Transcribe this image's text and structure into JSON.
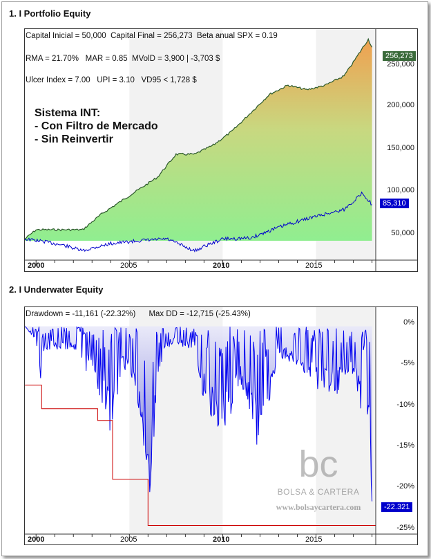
{
  "panel1": {
    "title": "1. I Portfolio Equity",
    "stats": [
      "Capital Inicial = 50,000  Capital Final = 256,273  Beta anual SPX = 0.19",
      "RMA = 21.70%   MAR = 0.85  MVolD = 3,900 | -3,703 $",
      "Ulcer Index = 7.00   UPI = 3.10   VD95 < 1,728 $"
    ],
    "overlay_lines": [
      "Sistema INT:",
      "- Con Filtro de Mercado",
      "- Sin Reinvertir"
    ],
    "y_ticks": [
      "250,000",
      "200,000",
      "150,000",
      "100,000",
      "50,000"
    ],
    "x_ticks": [
      "2000",
      "2005",
      "2010",
      "2015"
    ],
    "equity_badge": "256,273",
    "benchmark_badge": "85,310",
    "colors": {
      "equity_line": "#2d5a2d",
      "benchmark_line": "#0000cc",
      "fill_top": "#f0a050",
      "fill_bottom": "#90ee90"
    }
  },
  "panel2": {
    "title": "2. I Underwater Equity",
    "stats": "Drawdown = -11,161 (-22.32%)      Max DD = -12,715 (-25.43%)",
    "y_ticks": [
      "0%",
      "-5%",
      "-10%",
      "-15%",
      "-20%",
      "-25%"
    ],
    "x_ticks": [
      "2000",
      "2005",
      "2010",
      "2015"
    ],
    "current_badge": "-22.321",
    "watermark_logo": "bc",
    "watermark_name": "BOLSA & CARTERA",
    "watermark_url": "www.bolsaycartera.com",
    "colors": {
      "drawdown_line": "#0000ee",
      "max_dd_line": "#cc0000",
      "fill": "#c8c8f0"
    }
  },
  "chart_data": [
    {
      "type": "area",
      "title": "1. I Portfolio Equity",
      "series": [
        {
          "name": "Equity",
          "x": [
            1999.4,
            2000.0,
            2002.5,
            2003.5,
            2005.0,
            2006.5,
            2007.5,
            2008.5,
            2009.5,
            2010.5,
            2011.5,
            2012.5,
            2013.5,
            2014.5,
            2015.5,
            2016.5,
            2017.0,
            2017.8,
            2018.0
          ],
          "values": [
            48000,
            58000,
            58000,
            75000,
            95000,
            115000,
            140000,
            140000,
            150000,
            165000,
            185000,
            205000,
            215000,
            210000,
            215000,
            225000,
            240000,
            265000,
            256273
          ]
        },
        {
          "name": "Benchmark",
          "x": [
            1999.4,
            2000.5,
            2001.5,
            2002.5,
            2003.0,
            2004.0,
            2005.5,
            2007.0,
            2008.5,
            2009.0,
            2010.0,
            2011.5,
            2012.5,
            2013.5,
            2014.5,
            2015.5,
            2016.5,
            2017.5,
            2018.0
          ],
          "values": [
            48000,
            45000,
            41000,
            35000,
            38000,
            43000,
            46000,
            48000,
            35000,
            40000,
            48000,
            49000,
            57000,
            64000,
            70000,
            75000,
            80000,
            98000,
            85310
          ]
        }
      ],
      "ylim": [
        25000,
        270000
      ],
      "xlim": [
        1999.4,
        2018.2
      ]
    },
    {
      "type": "area",
      "title": "2. I Underwater Equity",
      "series": [
        {
          "x": [
            1999.4,
            2000.0,
            2000.2,
            2000.5,
            2001.0,
            2001.5,
            2002.0,
            2002.5,
            2003.0,
            2003.5,
            2004.0,
            2004.5,
            2005.0,
            2005.5,
            2006.0,
            2006.5,
            2007.0,
            2007.5,
            2008.0,
            2008.5,
            2009.0,
            2010.0,
            2011.0,
            2012.0,
            2013.0,
            2014.0,
            2015.0,
            2016.0,
            2017.0,
            2017.8,
            2018.0
          ],
          "values": [
            0,
            -2.0,
            -7.5,
            -3.0,
            -3.0,
            -3.0,
            -3.0,
            -6.5,
            -5.0,
            -10.0,
            -14.0,
            -7.0,
            -5.0,
            -12.0,
            -25.4,
            -8.0,
            -3.0,
            -2.0,
            -3.0,
            -3.0,
            -10.0,
            -14.0,
            -8.0,
            -17.0,
            -4.0,
            -5.0,
            -8.0,
            -9.0,
            -6.0,
            -15.0,
            -22.32
          ]
        },
        {
          "x": [
            1999.4,
            2000.3,
            2000.3,
            2003.3,
            2003.3,
            2004.1,
            2004.1,
            2006.0,
            2006.0,
            2018.2
          ],
          "values": [
            -7.5,
            -7.5,
            -10.5,
            -10.5,
            -12.0,
            -12.0,
            -19.5,
            -19.5,
            -25.4,
            -25.4
          ]
        }
      ],
      "ylim": [
        -26.5,
        0.5
      ],
      "xlim": [
        1999.4,
        2018.2
      ]
    }
  ]
}
